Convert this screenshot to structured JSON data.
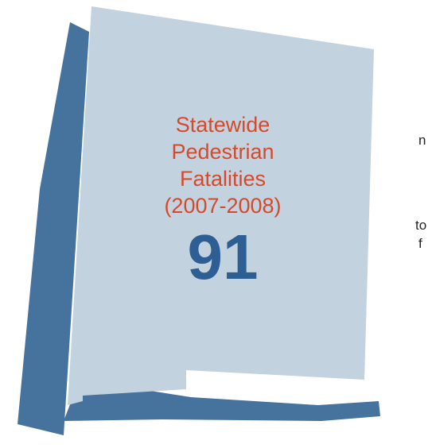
{
  "side_text": {
    "fragment_1": "n",
    "fragment_2": "to",
    "fragment_3": "f"
  },
  "callout": {
    "lines": [
      "Statewide",
      "Pedestrian",
      "Fatalities",
      "(2007-2008)"
    ],
    "value": "91"
  },
  "colors": {
    "state_fill": "#c3d2df",
    "state_shadow": "#46729e",
    "title_text": "#d6492b",
    "number_text": "#2d5f95"
  }
}
